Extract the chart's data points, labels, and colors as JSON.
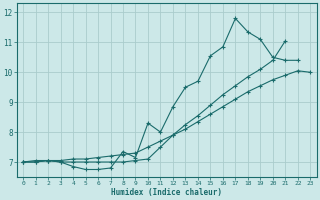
{
  "xlabel": "Humidex (Indice chaleur)",
  "bg_color": "#cce8e8",
  "grid_color": "#b0d4d4",
  "line_color": "#1a6b6b",
  "line1_x": [
    0,
    1,
    2,
    3,
    4,
    5,
    6,
    7,
    8,
    9,
    10,
    11,
    12,
    13,
    14,
    15,
    16,
    17,
    18,
    19,
    20,
    21,
    22,
    23
  ],
  "line1_y": [
    7.0,
    7.0,
    7.05,
    7.05,
    7.1,
    7.1,
    7.15,
    7.2,
    7.25,
    7.3,
    7.5,
    7.7,
    7.9,
    8.1,
    8.35,
    8.6,
    8.85,
    9.1,
    9.35,
    9.55,
    9.75,
    9.9,
    10.05,
    10.0
  ],
  "line2_x": [
    0,
    1,
    2,
    3,
    4,
    5,
    6,
    7,
    8,
    9,
    10,
    11,
    12,
    13,
    14,
    15,
    16,
    17,
    18,
    19,
    20,
    21,
    22
  ],
  "line2_y": [
    7.0,
    7.05,
    7.05,
    7.0,
    6.85,
    6.75,
    6.75,
    6.8,
    7.35,
    7.15,
    8.3,
    8.0,
    8.85,
    9.5,
    9.7,
    10.55,
    10.85,
    11.8,
    11.35,
    11.1,
    10.5,
    10.4,
    10.4
  ],
  "line3_x": [
    0,
    1,
    2,
    3,
    4,
    5,
    6,
    7,
    8,
    9,
    10,
    11,
    12,
    13,
    14,
    15,
    16,
    17,
    18,
    19,
    20,
    21
  ],
  "line3_y": [
    7.0,
    7.0,
    7.05,
    7.0,
    7.0,
    7.0,
    7.0,
    7.0,
    7.0,
    7.05,
    7.1,
    7.5,
    7.9,
    8.25,
    8.55,
    8.9,
    9.25,
    9.55,
    9.85,
    10.1,
    10.4,
    11.05
  ],
  "xlim": [
    -0.5,
    23.5
  ],
  "ylim": [
    6.5,
    12.3
  ],
  "yticks": [
    7,
    8,
    9,
    10,
    11,
    12
  ],
  "xticks": [
    0,
    1,
    2,
    3,
    4,
    5,
    6,
    7,
    8,
    9,
    10,
    11,
    12,
    13,
    14,
    15,
    16,
    17,
    18,
    19,
    20,
    21,
    22,
    23
  ]
}
